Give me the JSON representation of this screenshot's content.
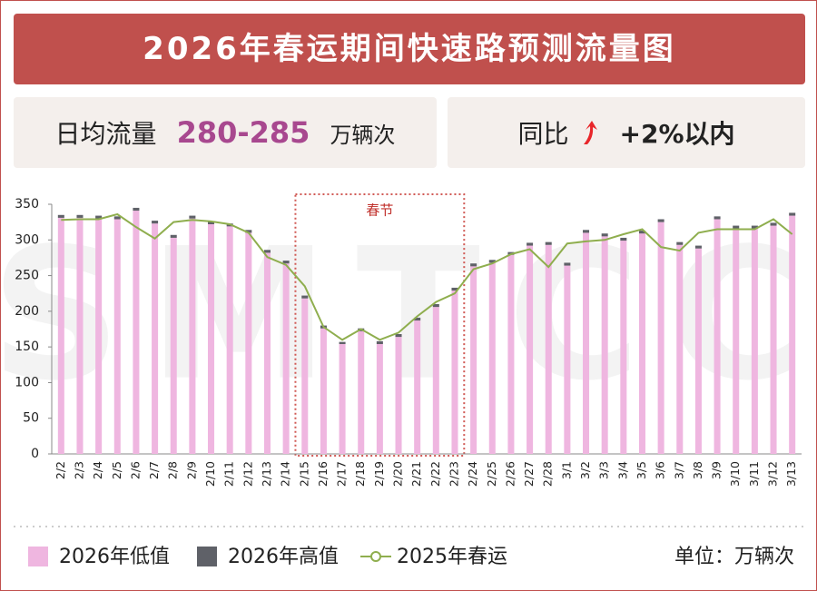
{
  "header": {
    "title": "2026年春运期间快速路预测流量图"
  },
  "stats": [
    {
      "label": "日均流量",
      "value": "280-285",
      "unit": "万辆次"
    },
    {
      "label": "同比",
      "value": "+2%以内"
    }
  ],
  "watermark": "SMTCC",
  "chart_data": {
    "type": "bar",
    "stacked": true,
    "annotation": "春节",
    "unit": "单位：万辆次",
    "categories": [
      "2/2",
      "2/3",
      "2/4",
      "2/5",
      "2/6",
      "2/7",
      "2/8",
      "2/9",
      "2/10",
      "2/11",
      "2/12",
      "2/13",
      "2/14",
      "2/15",
      "2/16",
      "2/17",
      "2/18",
      "2/19",
      "2/20",
      "2/21",
      "2/22",
      "2/23",
      "2/24",
      "2/25",
      "2/26",
      "2/27",
      "2/28",
      "3/1",
      "3/2",
      "3/3",
      "3/4",
      "3/5",
      "3/6",
      "3/7",
      "3/8",
      "3/9",
      "3/10",
      "3/11",
      "3/12",
      "3/13"
    ],
    "series": [
      {
        "name": "2026年低值",
        "type": "bar",
        "color": "#efb6e0",
        "values": [
          331,
          331,
          330,
          329,
          341,
          323,
          303,
          330,
          322,
          319,
          310,
          282,
          267,
          218,
          176,
          154,
          172,
          154,
          164,
          187,
          206,
          229,
          263,
          268,
          279,
          292,
          293,
          264,
          310,
          305,
          299,
          309,
          325,
          293,
          288,
          329,
          316,
          316,
          320,
          334
        ]
      },
      {
        "name": "2026年高值",
        "type": "bar",
        "color": "#5f6168",
        "values": [
          4,
          4,
          4,
          4,
          4,
          4,
          4,
          4,
          4,
          4,
          4,
          4,
          4,
          4,
          4,
          3,
          4,
          4,
          4,
          4,
          4,
          4,
          4,
          4,
          4,
          4,
          4,
          4,
          4,
          4,
          4,
          4,
          4,
          4,
          4,
          4,
          4,
          4,
          4,
          4
        ]
      },
      {
        "name": "2025年春运",
        "type": "line",
        "color": "#8fae4e",
        "values": [
          328,
          329,
          329,
          336,
          318,
          302,
          325,
          328,
          326,
          322,
          310,
          276,
          265,
          235,
          178,
          160,
          175,
          160,
          170,
          193,
          213,
          225,
          259,
          267,
          280,
          287,
          262,
          295,
          298,
          300,
          308,
          315,
          290,
          285,
          310,
          315,
          315,
          315,
          329,
          308
        ]
      }
    ],
    "ylim": [
      0,
      350
    ],
    "yticks": [
      0,
      50,
      100,
      150,
      200,
      250,
      300,
      350
    ],
    "grid": false
  }
}
